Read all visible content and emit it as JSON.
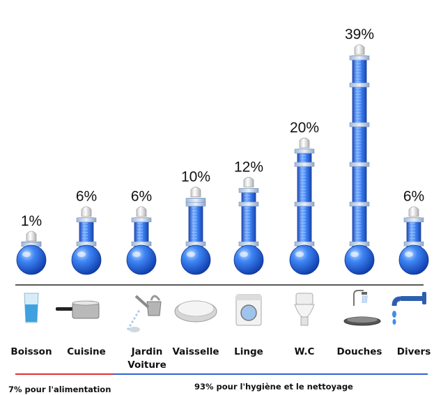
{
  "chart_data": {
    "type": "bar",
    "categories": [
      "Boisson",
      "Cuisine",
      "Jardin Voiture",
      "Vaisselle",
      "Linge",
      "W.C",
      "Douches",
      "Divers"
    ],
    "category_lines": [
      [
        "Boisson"
      ],
      [
        "Cuisine"
      ],
      [
        "Jardin",
        "Voiture"
      ],
      [
        "Vaisselle"
      ],
      [
        "Linge"
      ],
      [
        "W.C"
      ],
      [
        "Douches"
      ],
      [
        "Divers"
      ]
    ],
    "values": [
      1,
      6,
      6,
      10,
      12,
      20,
      39,
      6
    ],
    "value_labels": [
      "1%",
      "6%",
      "6%",
      "10%",
      "12%",
      "20%",
      "39%",
      "6%"
    ],
    "icons": [
      "glass-of-water-icon",
      "saucepan-icon",
      "watering-can-icon",
      "plate-icon",
      "washing-machine-icon",
      "toilet-icon",
      "shower-icon",
      "faucet-icon"
    ],
    "style": "thermometer",
    "bar_color": "#2f6fe0",
    "groups": [
      {
        "label": "7% pour l'alimentation",
        "categories": [
          "Boisson",
          "Cuisine"
        ],
        "color": "#e03030"
      },
      {
        "label": "93% pour l'hygiène et le nettoyage",
        "categories": [
          "Jardin Voiture",
          "Vaisselle",
          "Linge",
          "W.C",
          "Douches",
          "Divers"
        ],
        "color": "#2f5fd8"
      }
    ]
  }
}
